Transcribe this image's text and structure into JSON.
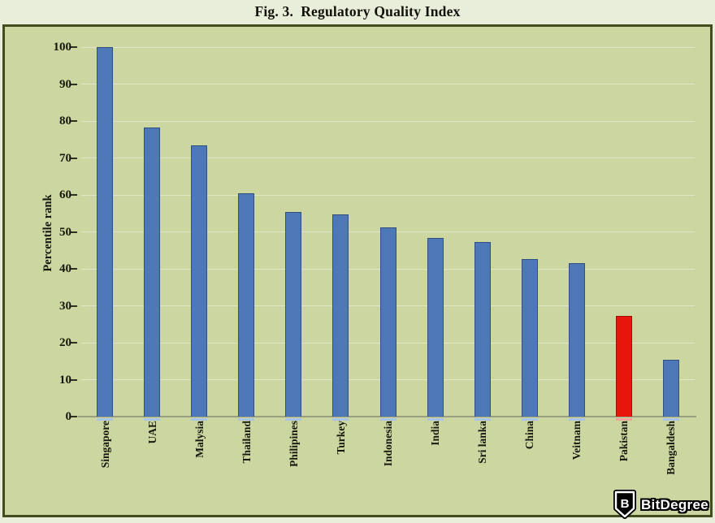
{
  "title": "Fig. 3.  Regulatory Quality Index",
  "chart_data": {
    "type": "bar",
    "title": "Fig. 3.  Regulatory Quality Index",
    "xlabel": "",
    "ylabel": "Percentile rank",
    "ylim": [
      0,
      100
    ],
    "yticks": [
      0,
      10,
      20,
      30,
      40,
      50,
      60,
      70,
      80,
      90,
      100
    ],
    "grid": "horizontal gridlines at every tick",
    "legend": "none",
    "categories": [
      "Singapore",
      "UAE",
      "Malysia",
      "Thailand",
      "Philipines",
      "Turkey",
      "Indonesia",
      "India",
      "Sri lanka",
      "China",
      "Veitnam",
      "Pakistan",
      "Bangaldesh"
    ],
    "values": [
      100,
      78.3,
      73.4,
      60.5,
      55.3,
      54.7,
      51.2,
      48.3,
      47.3,
      42.7,
      41.6,
      27.3,
      15.3
    ],
    "highlight_index": 11,
    "highlight_note": "Pakistan bar drawn in red; all other bars blue",
    "colors": {
      "bar_fill": "#4d77b6",
      "bar_border": "#31507e",
      "bar_axis_stub": "#a9c4e6",
      "highlight_fill": "#e8150c",
      "highlight_border": "#9b1007",
      "highlight_axis_stub": "#f2a39e",
      "plot_bg": "#ccd6a1",
      "page_bg": "#e9eeda",
      "gridline": "#e0e7c6",
      "baseline": "#9aa07f",
      "frame_border": "#414c1f"
    }
  },
  "watermark": {
    "shield_letter": "B",
    "brand": "BitDegree"
  }
}
